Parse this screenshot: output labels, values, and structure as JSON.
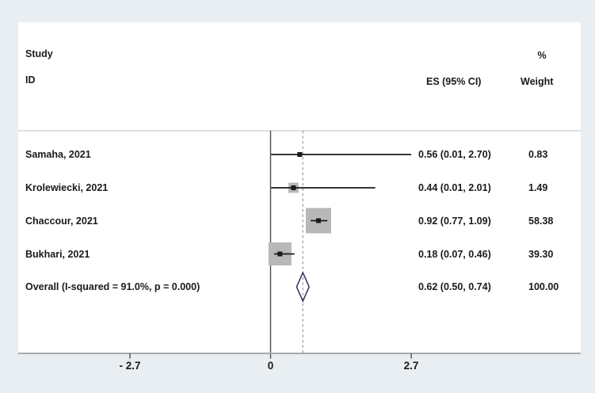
{
  "header": {
    "study": "Study",
    "id": "ID",
    "percent": "%",
    "es": "ES (95% CI)",
    "weight": "Weight"
  },
  "chart_data": {
    "type": "forest",
    "title": "",
    "columns": [
      "Study ID",
      "ES (95% CI)",
      "% Weight"
    ],
    "studies": [
      {
        "label": "Samaha, 2021",
        "es": 0.56,
        "ci_low": 0.01,
        "ci_high": 2.7,
        "es_text": "0.56 (0.01, 2.70)",
        "weight": 0.83,
        "weight_text": "0.83"
      },
      {
        "label": "Krolewiecki, 2021",
        "es": 0.44,
        "ci_low": 0.01,
        "ci_high": 2.01,
        "es_text": "0.44 (0.01, 2.01)",
        "weight": 1.49,
        "weight_text": "1.49"
      },
      {
        "label": "Chaccour, 2021",
        "es": 0.92,
        "ci_low": 0.77,
        "ci_high": 1.09,
        "es_text": "0.92 (0.77, 1.09)",
        "weight": 58.38,
        "weight_text": "58.38"
      },
      {
        "label": "Bukhari, 2021",
        "es": 0.18,
        "ci_low": 0.07,
        "ci_high": 0.46,
        "es_text": "0.18 (0.07, 0.46)",
        "weight": 39.3,
        "weight_text": "39.30"
      }
    ],
    "overall": {
      "label": "Overall (I-squared = 91.0%, p = 0.000)",
      "es": 0.62,
      "ci_low": 0.5,
      "ci_high": 0.74,
      "es_text": "0.62 (0.50, 0.74)",
      "weight": 100.0,
      "weight_text": "100.00"
    },
    "x_axis": {
      "ticks": [
        {
          "value": -2.7,
          "label": "- 2.7"
        },
        {
          "value": 0,
          "label": "0"
        },
        {
          "value": 2.7,
          "label": "2.7"
        }
      ],
      "range": [
        -2.7,
        2.7
      ],
      "reference_line": 0,
      "overall_dashed_line": 0.62,
      "grid": false
    },
    "legend": null,
    "colors": {
      "background": "#e8eef1",
      "panel": "#ffffff",
      "weight_box": "#b8b8b8",
      "ci_line": "#1a1a1a",
      "marker": "#1a1a1a",
      "diamond_stroke": "#2e2e60",
      "dashed_line": "#9aa0a4",
      "zero_line": "#4d4d4d",
      "axis_line": "#a7abae",
      "separator": "#c9cdd0",
      "text": "#1a1a1a"
    }
  }
}
